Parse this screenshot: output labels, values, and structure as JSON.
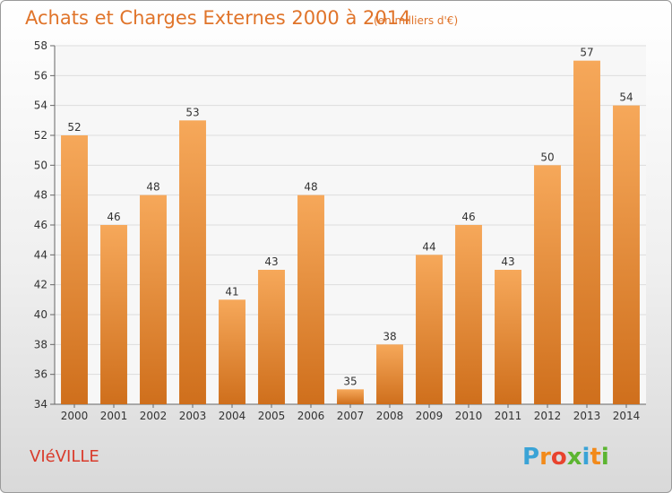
{
  "chart_data": {
    "type": "bar",
    "title": "Achats et Charges Externes 2000 à 2014",
    "subtitle": "(en milliers d'€)",
    "categories": [
      "2000",
      "2001",
      "2002",
      "2003",
      "2004",
      "2005",
      "2006",
      "2007",
      "2008",
      "2009",
      "2010",
      "2011",
      "2012",
      "2013",
      "2014"
    ],
    "values": [
      52,
      46,
      48,
      53,
      41,
      43,
      48,
      35,
      38,
      44,
      46,
      43,
      50,
      57,
      54
    ],
    "ylim": [
      34,
      58
    ],
    "yticks": [
      34,
      36,
      38,
      40,
      42,
      44,
      46,
      48,
      50,
      52,
      54,
      56,
      58
    ],
    "grid": true,
    "bar_color": "#f0903a"
  },
  "footer": {
    "town": "VIéVILLE",
    "logo_letters": [
      "P",
      "r",
      "o",
      "x",
      "i",
      "t",
      "i"
    ],
    "logo_colors": [
      "#3aa3d6",
      "#f28a1a",
      "#e8432e",
      "#5cb531",
      "#3aa3d6",
      "#f28a1a",
      "#5cb531"
    ]
  }
}
